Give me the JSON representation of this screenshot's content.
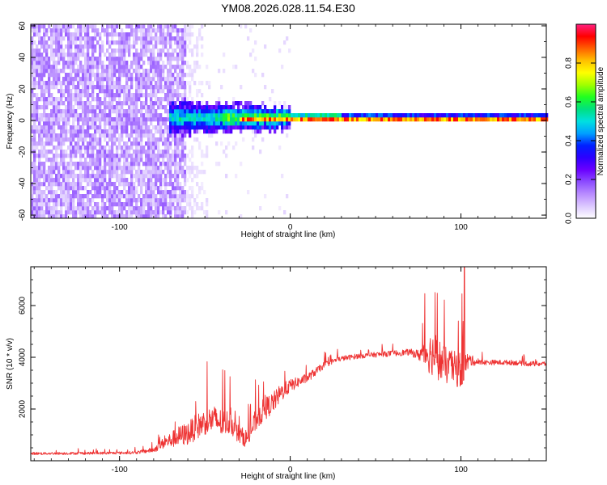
{
  "chart_data": [
    {
      "type": "heatmap",
      "title": "YM08.2026.028.11.54.E30",
      "xlabel": "Height of straight line (km)",
      "ylabel": "Frequency (Hz)",
      "xlim": [
        -152,
        150
      ],
      "ylim": [
        -62,
        61
      ],
      "xticks": [
        -100,
        0,
        100
      ],
      "yticks": [
        60,
        40,
        20,
        0,
        -20,
        -40,
        -60
      ],
      "colorbar": {
        "label": "Normalized spectral amplitude",
        "range": [
          0.0,
          1.0
        ],
        "ticks": [
          0.0,
          0.2,
          0.4,
          0.6,
          0.8
        ],
        "colors": [
          "#ffffff",
          "#dcc8ff",
          "#b98cff",
          "#8c4cff",
          "#6a00ff",
          "#2d00ff",
          "#0020ff",
          "#00a0ff",
          "#00e0e0",
          "#00e080",
          "#20ff20",
          "#a0ff00",
          "#ffff00",
          "#ffc000",
          "#ff6000",
          "#ff0000",
          "#ff2080"
        ]
      },
      "regions": [
        {
          "name": "dense broadband noise",
          "x_from": -152,
          "x_to": -62,
          "f_half_width": 62,
          "amplitude": 0.1
        },
        {
          "name": "fading noise",
          "x_from": -62,
          "x_to": -45,
          "f_half_width": 62,
          "amplitude": 0.03
        },
        {
          "name": "central spectral band",
          "x_from": -72,
          "x_to": 150,
          "f_center": 0,
          "amplitude_peak": 0.9
        }
      ]
    },
    {
      "type": "line",
      "xlabel": "Height of straight line (km)",
      "ylabel": "SNR (10 * v/v)",
      "xlim": [
        -152,
        150
      ],
      "ylim": [
        0,
        7500
      ],
      "xticks": [
        -100,
        0,
        100
      ],
      "yticks": [
        2000,
        4000,
        6000
      ],
      "series": [
        {
          "name": "SNR",
          "color": "#ee3333",
          "x": [
            -152,
            -120,
            -100,
            -90,
            -80,
            -75,
            -70,
            -65,
            -60,
            -55,
            -50,
            -45,
            -40,
            -35,
            -30,
            -25,
            -20,
            -15,
            -10,
            -5,
            0,
            5,
            10,
            15,
            20,
            25,
            30,
            40,
            50,
            60,
            70,
            75,
            80,
            85,
            90,
            95,
            100,
            105,
            110,
            120,
            130,
            140,
            150
          ],
          "y": [
            280,
            290,
            300,
            320,
            420,
            650,
            800,
            950,
            1050,
            1300,
            1500,
            1600,
            1450,
            1500,
            1000,
            850,
            1600,
            2000,
            2250,
            2650,
            2900,
            3050,
            3200,
            3450,
            3700,
            3850,
            3950,
            4050,
            4100,
            4150,
            4200,
            4100,
            4200,
            4100,
            3700,
            3600,
            3500,
            3900,
            3800,
            3800,
            3800,
            3750,
            3750
          ],
          "noise": [
            100,
            100,
            100,
            110,
            200,
            400,
            600,
            800,
            900,
            1000,
            1000,
            1100,
            1100,
            900,
            700,
            700,
            900,
            900,
            800,
            700,
            500,
            400,
            350,
            300,
            250,
            200,
            200,
            200,
            200,
            220,
            250,
            400,
            1500,
            1800,
            1500,
            1300,
            1500,
            500,
            200,
            200,
            200,
            200,
            200
          ]
        }
      ],
      "peak": {
        "x": 102,
        "y": 7500
      }
    }
  ]
}
